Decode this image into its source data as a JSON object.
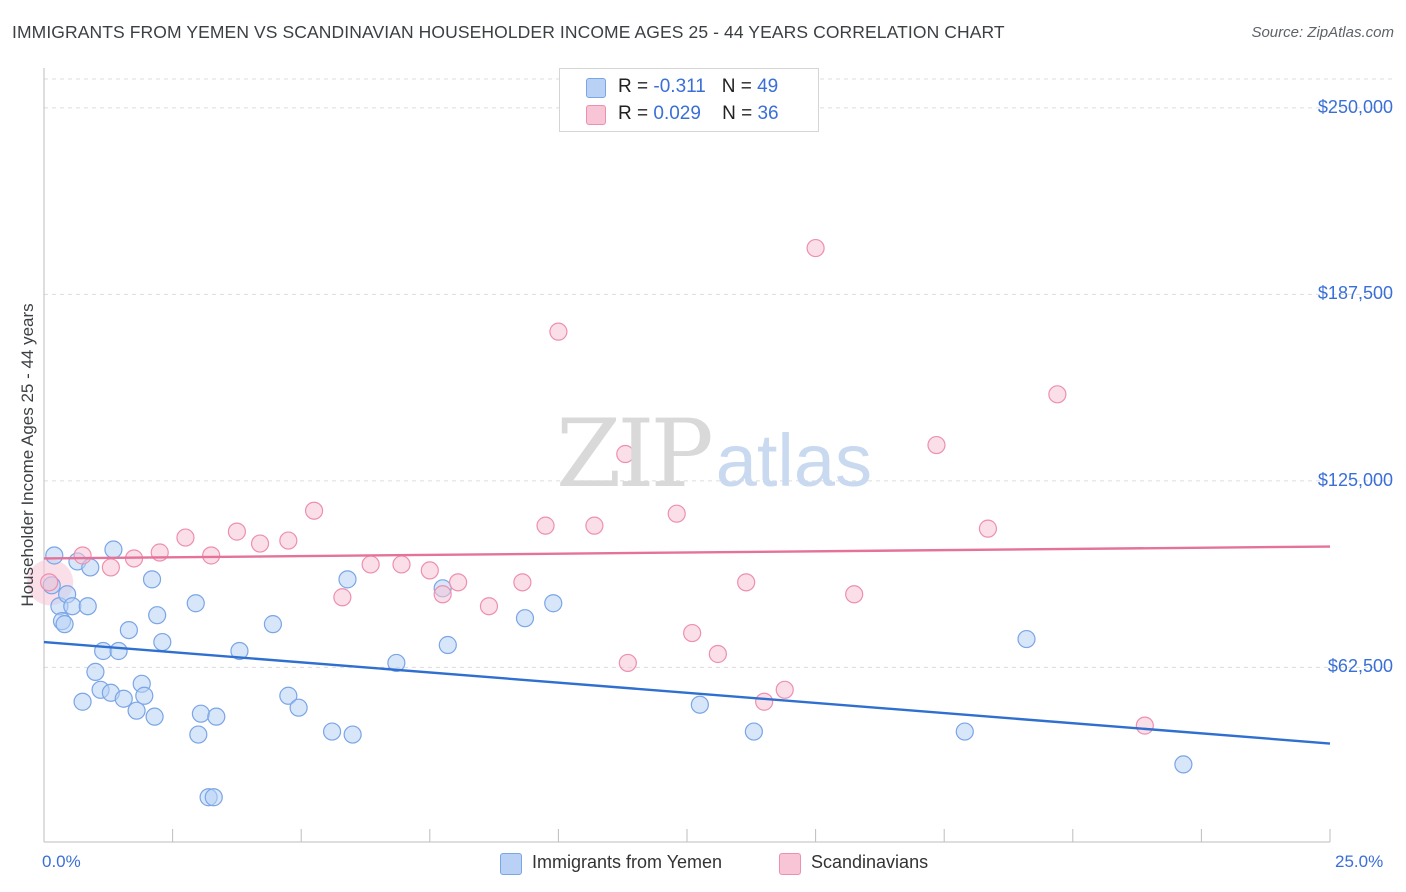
{
  "title": "IMMIGRANTS FROM YEMEN VS SCANDINAVIAN HOUSEHOLDER INCOME AGES 25 - 44 YEARS CORRELATION CHART",
  "source": "Source: ZipAtlas.com",
  "watermark": {
    "zip": "ZIP",
    "atlas": "atlas"
  },
  "legend": {
    "r_label": "R =",
    "n_label": "N =",
    "rows": [
      {
        "r": "-0.311",
        "n": "49",
        "fill": "#b8d1f5",
        "stroke": "#7aa5e6"
      },
      {
        "r": "0.029",
        "n": "36",
        "fill": "#f8c5d6",
        "stroke": "#ee8fae"
      }
    ]
  },
  "bottom_legend": [
    {
      "label": "Immigrants from Yemen",
      "fill": "#b8d1f5",
      "stroke": "#7aa5e6"
    },
    {
      "label": "Scandinavians",
      "fill": "#f8c5d6",
      "stroke": "#ee8fae"
    }
  ],
  "chart_data": {
    "type": "scatter",
    "title": "IMMIGRANTS FROM YEMEN VS SCANDINAVIAN HOUSEHOLDER INCOME AGES 25 - 44 YEARS CORRELATION CHART",
    "xlabel": "",
    "ylabel": "Householder Income Ages 25 - 44 years",
    "x_ticklabels": [
      "0.0%",
      "25.0%"
    ],
    "y_ticklabels": [
      "$62,500",
      "$125,000",
      "$187,500",
      "$250,000"
    ],
    "y_ticks": [
      62500,
      125000,
      187500,
      250000
    ],
    "xlim": [
      0,
      25
    ],
    "ylim": [
      4000,
      262000
    ],
    "grid": true,
    "legend_position": "top-center",
    "series": [
      {
        "name": "Immigrants from Yemen",
        "color": "#7aa5e6",
        "fill": "#b8d1f5",
        "line_color": "#2f6fd0",
        "trend": [
          [
            0,
            71000
          ],
          [
            25,
            37000
          ]
        ],
        "points": [
          [
            0.15,
            90000
          ],
          [
            0.2,
            100000
          ],
          [
            0.3,
            83000
          ],
          [
            0.35,
            78000
          ],
          [
            0.4,
            77000
          ],
          [
            0.45,
            87000
          ],
          [
            0.55,
            83000
          ],
          [
            0.65,
            98000
          ],
          [
            0.75,
            51000
          ],
          [
            0.85,
            83000
          ],
          [
            0.9,
            96000
          ],
          [
            1.0,
            61000
          ],
          [
            1.1,
            55000
          ],
          [
            1.15,
            68000
          ],
          [
            1.3,
            54000
          ],
          [
            1.35,
            102000
          ],
          [
            1.45,
            68000
          ],
          [
            1.55,
            52000
          ],
          [
            1.65,
            75000
          ],
          [
            1.8,
            48000
          ],
          [
            1.9,
            57000
          ],
          [
            1.95,
            53000
          ],
          [
            2.1,
            92000
          ],
          [
            2.15,
            46000
          ],
          [
            2.2,
            80000
          ],
          [
            2.3,
            71000
          ],
          [
            2.95,
            84000
          ],
          [
            3.0,
            40000
          ],
          [
            3.05,
            47000
          ],
          [
            3.2,
            19000
          ],
          [
            3.3,
            19000
          ],
          [
            3.35,
            46000
          ],
          [
            3.8,
            68000
          ],
          [
            4.45,
            77000
          ],
          [
            4.75,
            53000
          ],
          [
            4.95,
            49000
          ],
          [
            5.6,
            41000
          ],
          [
            5.9,
            92000
          ],
          [
            6.0,
            40000
          ],
          [
            6.85,
            64000
          ],
          [
            7.75,
            89000
          ],
          [
            7.85,
            70000
          ],
          [
            9.35,
            79000
          ],
          [
            9.9,
            84000
          ],
          [
            12.75,
            50000
          ],
          [
            13.8,
            41000
          ],
          [
            17.9,
            41000
          ],
          [
            19.1,
            72000
          ],
          [
            22.15,
            30000
          ]
        ]
      },
      {
        "name": "Scandinavians",
        "color": "#ee8fae",
        "fill": "#f8c5d6",
        "line_color": "#e4729a",
        "trend": [
          [
            0,
            99000
          ],
          [
            25,
            103000
          ]
        ],
        "points": [
          [
            0.1,
            91000
          ],
          [
            0.75,
            100000
          ],
          [
            1.3,
            96000
          ],
          [
            1.75,
            99000
          ],
          [
            2.25,
            101000
          ],
          [
            2.75,
            106000
          ],
          [
            3.25,
            100000
          ],
          [
            3.75,
            108000
          ],
          [
            4.2,
            104000
          ],
          [
            4.75,
            105000
          ],
          [
            5.25,
            115000
          ],
          [
            5.8,
            86000
          ],
          [
            6.35,
            97000
          ],
          [
            6.95,
            97000
          ],
          [
            7.5,
            95000
          ],
          [
            7.75,
            87000
          ],
          [
            8.05,
            91000
          ],
          [
            8.65,
            83000
          ],
          [
            9.3,
            91000
          ],
          [
            9.75,
            110000
          ],
          [
            10.0,
            175000
          ],
          [
            10.7,
            110000
          ],
          [
            11.3,
            134000
          ],
          [
            11.35,
            64000
          ],
          [
            12.3,
            114000
          ],
          [
            12.6,
            74000
          ],
          [
            13.1,
            67000
          ],
          [
            13.65,
            91000
          ],
          [
            14.0,
            51000
          ],
          [
            14.4,
            55000
          ],
          [
            15.0,
            203000
          ],
          [
            15.75,
            87000
          ],
          [
            17.35,
            137000
          ],
          [
            18.35,
            109000
          ],
          [
            19.7,
            154000
          ],
          [
            21.4,
            43000
          ]
        ]
      }
    ]
  }
}
